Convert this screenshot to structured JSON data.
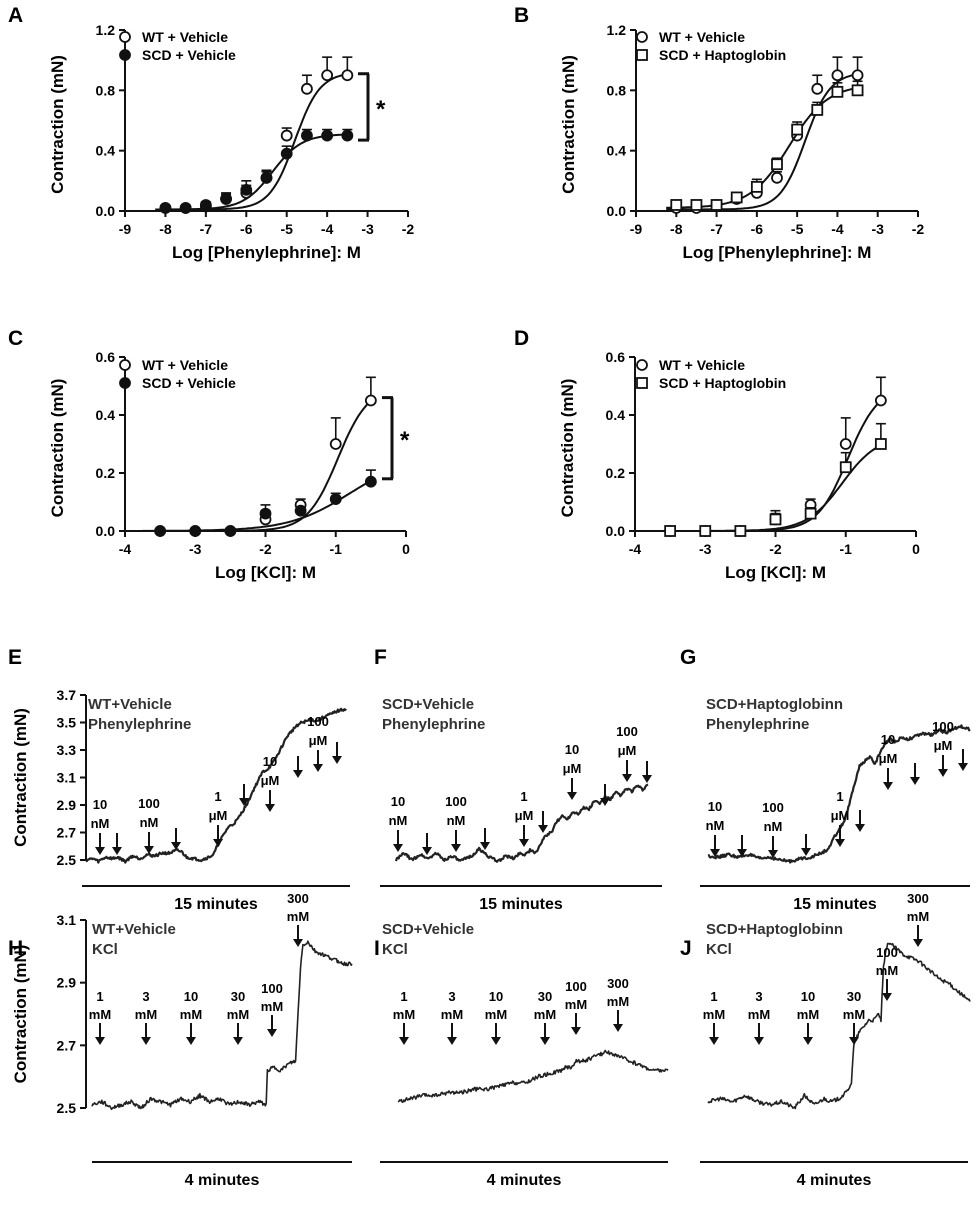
{
  "chart_data": [
    {
      "panel": "A",
      "type": "scatter",
      "xlabel": "Log [Phenylephrine]: M",
      "ylabel": "Contraction (mN)",
      "xlim": [
        -9,
        -2
      ],
      "ylim": [
        0,
        1.2
      ],
      "xticks": [
        "-9",
        "-8",
        "-7",
        "-6",
        "-5",
        "-4",
        "-3",
        "-2"
      ],
      "yticks": [
        "0.0",
        "0.4",
        "0.8",
        "1.2"
      ],
      "significance": "*",
      "sig_range": [
        0.47,
        0.91
      ],
      "series": [
        {
          "name": "WT + Vehicle",
          "marker": "open-circle",
          "x": [
            -8,
            -7.5,
            -7,
            -6.5,
            -6,
            -5.5,
            -5,
            -4.5,
            -4,
            -3.5
          ],
          "y": [
            0.02,
            0.02,
            0.04,
            0.08,
            0.12,
            0.22,
            0.5,
            0.81,
            0.9,
            0.9
          ],
          "err": [
            0.01,
            0.01,
            0.02,
            0.04,
            0.05,
            0.04,
            0.05,
            0.09,
            0.12,
            0.12
          ],
          "fit": {
            "bottom": 0.01,
            "top": 0.92,
            "logec50": -4.8,
            "hill": 1.4
          }
        },
        {
          "name": "SCD + Vehicle",
          "marker": "filled-circle",
          "x": [
            -8,
            -7.5,
            -7,
            -6.5,
            -6,
            -5.5,
            -5,
            -4.5,
            -4,
            -3.5
          ],
          "y": [
            0.02,
            0.02,
            0.03,
            0.08,
            0.14,
            0.22,
            0.38,
            0.5,
            0.5,
            0.5
          ],
          "err": [
            0.01,
            0.01,
            0.02,
            0.03,
            0.06,
            0.05,
            0.05,
            0.04,
            0.04,
            0.04
          ],
          "fit": {
            "bottom": 0.01,
            "top": 0.51,
            "logec50": -5.35,
            "hill": 1.2
          }
        }
      ]
    },
    {
      "panel": "B",
      "type": "scatter",
      "xlabel": "Log [Phenylephrine]: M",
      "ylabel": "Contraction (mN)",
      "xlim": [
        -9,
        -2
      ],
      "ylim": [
        0,
        1.2
      ],
      "xticks": [
        "-9",
        "-8",
        "-7",
        "-6",
        "-5",
        "-4",
        "-3",
        "-2"
      ],
      "yticks": [
        "0.0",
        "0.4",
        "0.8",
        "1.2"
      ],
      "series": [
        {
          "name": "WT + Vehicle",
          "marker": "open-circle",
          "x": [
            -8,
            -7.5,
            -7,
            -6.5,
            -6,
            -5.5,
            -5,
            -4.5,
            -4,
            -3.5
          ],
          "y": [
            0.02,
            0.02,
            0.04,
            0.08,
            0.12,
            0.22,
            0.5,
            0.81,
            0.9,
            0.9
          ],
          "err": [
            0.01,
            0.01,
            0.02,
            0.04,
            0.05,
            0.04,
            0.05,
            0.09,
            0.12,
            0.12
          ],
          "fit": {
            "bottom": 0.01,
            "top": 0.92,
            "logec50": -4.8,
            "hill": 1.4
          }
        },
        {
          "name": "SCD + Haptoglobin",
          "marker": "open-square",
          "x": [
            -8,
            -7.5,
            -7,
            -6.5,
            -6,
            -5.5,
            -5,
            -4.5,
            -4,
            -3.5
          ],
          "y": [
            0.04,
            0.04,
            0.04,
            0.09,
            0.16,
            0.31,
            0.54,
            0.67,
            0.79,
            0.8
          ],
          "err": [
            0.02,
            0.02,
            0.02,
            0.03,
            0.05,
            0.04,
            0.05,
            0.05,
            0.06,
            0.06
          ],
          "fit": {
            "bottom": 0.02,
            "top": 0.84,
            "logec50": -5.2,
            "hill": 0.9
          }
        }
      ]
    },
    {
      "panel": "C",
      "type": "scatter",
      "xlabel": "Log [KCl]: M",
      "ylabel": "Contraction (mN)",
      "xlim": [
        -4,
        0
      ],
      "ylim": [
        0,
        0.6
      ],
      "xticks": [
        "-4",
        "-3",
        "-2",
        "-1",
        "0"
      ],
      "yticks": [
        "0.0",
        "0.2",
        "0.4",
        "0.6"
      ],
      "significance": "*",
      "sig_range": [
        0.18,
        0.46
      ],
      "series": [
        {
          "name": "WT + Vehicle",
          "marker": "open-circle",
          "x": [
            -3.5,
            -3,
            -2.5,
            -2,
            -1.5,
            -1,
            -0.5
          ],
          "y": [
            0.0,
            0.0,
            0.0,
            0.04,
            0.09,
            0.3,
            0.45
          ],
          "err": [
            0.005,
            0.005,
            0.005,
            0.03,
            0.02,
            0.09,
            0.08
          ],
          "fit": {
            "bottom": 0.0,
            "top": 0.5,
            "logec50": -0.97,
            "hill": 2.0
          }
        },
        {
          "name": "SCD + Vehicle",
          "marker": "filled-circle",
          "x": [
            -3.5,
            -3,
            -2.5,
            -2,
            -1.5,
            -1,
            -0.5
          ],
          "y": [
            0.0,
            0.0,
            0.0,
            0.06,
            0.07,
            0.11,
            0.17
          ],
          "err": [
            0.005,
            0.005,
            0.005,
            0.03,
            0.01,
            0.02,
            0.04
          ],
          "fit": {
            "bottom": 0.0,
            "top": 0.26,
            "logec50": -0.8,
            "hill": 1.0
          }
        }
      ]
    },
    {
      "panel": "D",
      "type": "scatter",
      "xlabel": "Log [KCl]: M",
      "ylabel": "Contraction (mN)",
      "xlim": [
        -4,
        0
      ],
      "ylim": [
        0,
        0.6
      ],
      "xticks": [
        "-4",
        "-3",
        "-2",
        "-1",
        "0"
      ],
      "yticks": [
        "0.0",
        "0.2",
        "0.4",
        "0.6"
      ],
      "series": [
        {
          "name": "WT + Vehicle",
          "marker": "open-circle",
          "x": [
            -3.5,
            -3,
            -2.5,
            -2,
            -1.5,
            -1,
            -0.5
          ],
          "y": [
            0.0,
            0.0,
            0.0,
            0.04,
            0.09,
            0.3,
            0.45
          ],
          "err": [
            0.005,
            0.005,
            0.005,
            0.03,
            0.02,
            0.09,
            0.08
          ],
          "fit": {
            "bottom": 0.0,
            "top": 0.5,
            "logec50": -0.97,
            "hill": 2.0
          }
        },
        {
          "name": "SCD + Haptoglobin",
          "marker": "open-square",
          "x": [
            -3.5,
            -3,
            -2.5,
            -2,
            -1.5,
            -1,
            -0.5
          ],
          "y": [
            0.0,
            0.0,
            0.0,
            0.04,
            0.06,
            0.22,
            0.3
          ],
          "err": [
            0.005,
            0.005,
            0.005,
            0.02,
            0.02,
            0.05,
            0.07
          ],
          "fit": {
            "bottom": 0.0,
            "top": 0.33,
            "logec50": -1.05,
            "hill": 1.7
          }
        }
      ]
    },
    {
      "panel": "E",
      "type": "line",
      "ylabel": "Contraction (mN)",
      "yticks": [
        "2.5",
        "2.7",
        "2.9",
        "3.1",
        "3.3",
        "3.5",
        "3.7"
      ],
      "ylim": [
        2.5,
        3.7
      ],
      "titles": [
        "WT+Vehicle",
        "Phenylephrine"
      ],
      "scale_bar": "15 minutes",
      "doses": [
        "10 nM",
        "100 nM",
        "1 μM",
        "10 μM",
        "100 μM"
      ],
      "trace": [
        0,
        2.5,
        6,
        2.51,
        10,
        2.49,
        16,
        2.52,
        22,
        2.51,
        26,
        2.52,
        32,
        2.49,
        38,
        2.53,
        44,
        2.51,
        50,
        2.54,
        56,
        2.53,
        62,
        2.55,
        68,
        2.55,
        74,
        2.57,
        78,
        2.56,
        82,
        2.52,
        88,
        2.51,
        94,
        2.5,
        100,
        2.52,
        104,
        2.54,
        108,
        2.62,
        112,
        2.68,
        116,
        2.74,
        120,
        2.76,
        124,
        2.8,
        128,
        2.86,
        132,
        2.92,
        136,
        3.0,
        140,
        3.07,
        144,
        3.14,
        148,
        3.16,
        152,
        3.2,
        156,
        3.26,
        160,
        3.33,
        164,
        3.4,
        168,
        3.44,
        172,
        3.48,
        176,
        3.5,
        180,
        3.51,
        184,
        3.52,
        188,
        3.51,
        192,
        3.53,
        196,
        3.55,
        200,
        3.56,
        204,
        3.58,
        208,
        3.59,
        212,
        3.6
      ]
    },
    {
      "panel": "F",
      "type": "line",
      "titles": [
        "SCD+Vehicle",
        "Phenylephrine"
      ],
      "scale_bar": "15 minutes",
      "doses": [
        "10 nM",
        "100 nM",
        "1 μM",
        "10 μM",
        "100 μM"
      ],
      "trace": [
        0,
        2.5,
        6,
        2.55,
        12,
        2.5,
        18,
        2.54,
        24,
        2.51,
        30,
        2.55,
        36,
        2.5,
        42,
        2.53,
        48,
        2.49,
        54,
        2.52,
        58,
        2.54,
        62,
        2.58,
        66,
        2.55,
        70,
        2.52,
        76,
        2.49,
        82,
        2.53,
        88,
        2.51,
        92,
        2.55,
        96,
        2.54,
        100,
        2.57,
        104,
        2.55,
        108,
        2.62,
        112,
        2.68,
        116,
        2.7,
        120,
        2.78,
        124,
        2.82,
        128,
        2.8,
        132,
        2.85,
        136,
        2.84,
        140,
        2.88,
        144,
        2.87,
        148,
        2.93,
        152,
        2.91,
        156,
        2.96,
        160,
        2.94,
        164,
        2.99,
        168,
        2.97,
        172,
        3.02,
        176,
        3.0,
        180,
        3.04,
        184,
        3.01,
        188,
        3.05
      ]
    },
    {
      "panel": "G",
      "type": "line",
      "titles": [
        "SCD+Haptoglobinn",
        "Phenylephrine"
      ],
      "scale_bar": "15 minutes",
      "doses": [
        "10 nM",
        "100 nM",
        "1 μM",
        "10 μM",
        "100 μM"
      ],
      "trace": [
        0,
        2.53,
        8,
        2.52,
        16,
        2.54,
        24,
        2.52,
        32,
        2.54,
        40,
        2.51,
        48,
        2.52,
        56,
        2.5,
        64,
        2.49,
        72,
        2.51,
        80,
        2.52,
        88,
        2.55,
        94,
        2.58,
        98,
        2.66,
        102,
        2.72,
        106,
        2.78,
        110,
        2.9,
        114,
        3.05,
        118,
        3.18,
        122,
        3.22,
        126,
        3.25,
        130,
        3.2,
        134,
        3.28,
        138,
        3.35,
        142,
        3.38,
        146,
        3.36,
        150,
        3.39,
        156,
        3.38,
        162,
        3.4,
        168,
        3.42,
        174,
        3.41,
        180,
        3.44,
        186,
        3.43,
        192,
        3.46,
        198,
        3.47,
        204,
        3.45
      ]
    },
    {
      "panel": "H",
      "type": "line",
      "ylabel": "Contraction (mN)",
      "yticks": [
        "2.5",
        "2.7",
        "2.9",
        "3.1"
      ],
      "ylim": [
        2.5,
        3.1
      ],
      "titles": [
        "WT+Vehicle",
        "KCl"
      ],
      "scale_bar": "4 minutes",
      "doses": [
        "1 mM",
        "3 mM",
        "10 mM",
        "30 mM",
        "100 mM",
        "300 mM"
      ],
      "trace": [
        0,
        2.51,
        8,
        2.52,
        16,
        2.5,
        24,
        2.51,
        32,
        2.52,
        40,
        2.5,
        48,
        2.53,
        56,
        2.52,
        64,
        2.51,
        72,
        2.53,
        80,
        2.52,
        88,
        2.54,
        96,
        2.52,
        104,
        2.53,
        112,
        2.51,
        120,
        2.52,
        128,
        2.51,
        136,
        2.52,
        142,
        2.51,
        143,
        2.62,
        148,
        2.63,
        154,
        2.62,
        160,
        2.64,
        166,
        2.65,
        168,
        2.8,
        170,
        2.95,
        172,
        3.02,
        176,
        3.03,
        182,
        3.0,
        188,
        2.99,
        194,
        2.98,
        200,
        2.97,
        206,
        2.96,
        212,
        2.96
      ]
    },
    {
      "panel": "I",
      "type": "line",
      "titles": [
        "SCD+Vehicle",
        "KCl"
      ],
      "scale_bar": "4 minutes",
      "doses": [
        "1 mM",
        "3 mM",
        "10 mM",
        "30 mM",
        "100 mM",
        "300 mM"
      ],
      "trace": [
        0,
        2.52,
        10,
        2.53,
        20,
        2.54,
        30,
        2.54,
        40,
        2.55,
        50,
        2.55,
        60,
        2.56,
        70,
        2.56,
        80,
        2.57,
        90,
        2.58,
        100,
        2.58,
        110,
        2.6,
        120,
        2.61,
        128,
        2.62,
        132,
        2.63,
        136,
        2.63,
        140,
        2.65,
        146,
        2.65,
        152,
        2.66,
        158,
        2.67,
        164,
        2.68,
        170,
        2.67,
        176,
        2.66,
        182,
        2.65,
        188,
        2.64,
        194,
        2.63,
        200,
        2.62,
        206,
        2.62,
        212,
        2.62
      ]
    },
    {
      "panel": "J",
      "type": "line",
      "titles": [
        "SCD+Haptoglobinn",
        "KCl"
      ],
      "scale_bar": "4 minutes",
      "doses": [
        "1 mM",
        "3 mM",
        "10 mM",
        "30 mM",
        "100 mM",
        "300 mM"
      ],
      "trace": [
        0,
        2.52,
        10,
        2.53,
        20,
        2.52,
        30,
        2.54,
        40,
        2.52,
        50,
        2.51,
        60,
        2.52,
        70,
        2.5,
        78,
        2.54,
        86,
        2.51,
        94,
        2.53,
        100,
        2.52,
        106,
        2.53,
        112,
        2.55,
        116,
        2.58,
        118,
        2.7,
        122,
        2.74,
        126,
        2.76,
        130,
        2.78,
        134,
        2.78,
        138,
        2.8,
        140,
        2.78,
        142,
        2.95,
        144,
        3.0,
        146,
        3.03,
        152,
        3.01,
        158,
        2.99,
        164,
        2.98,
        170,
        2.97,
        176,
        2.95,
        182,
        2.93,
        188,
        2.91,
        194,
        2.9,
        200,
        2.88,
        206,
        2.86,
        212,
        2.84
      ]
    }
  ]
}
